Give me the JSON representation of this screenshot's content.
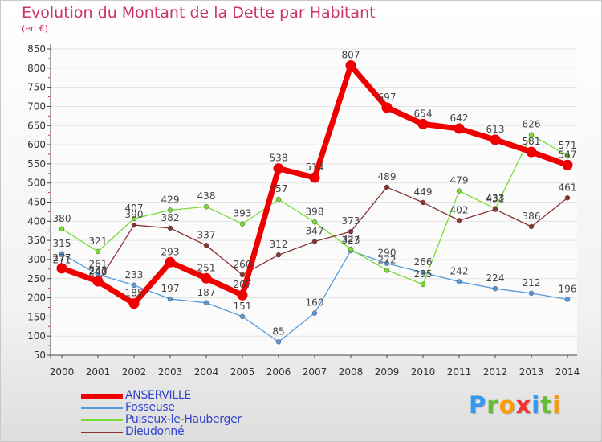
{
  "title": "Evolution du Montant de la Dette par Habitant",
  "subtitle": "(en €)",
  "chart_data": {
    "type": "line",
    "title": "Evolution du Montant de la Dette par Habitant",
    "subtitle": "(en €)",
    "ylim": [
      50,
      850
    ],
    "yticks": [
      50,
      100,
      150,
      200,
      250,
      300,
      350,
      400,
      450,
      500,
      550,
      600,
      650,
      700,
      750,
      800,
      850
    ],
    "x": [
      "2000",
      "2001",
      "2002",
      "2003",
      "2004",
      "2005",
      "2006",
      "2007",
      "2008",
      "2009",
      "2010",
      "2011",
      "2012",
      "2013",
      "2014"
    ],
    "grid": "horizontal",
    "legend_position": "bottom-left",
    "series": [
      {
        "name": "ANSERVILLE",
        "color": "#ee0000",
        "values": [
          277,
          243,
          185,
          293,
          251,
          207,
          538,
          514,
          807,
          697,
          654,
          642,
          613,
          581,
          547
        ]
      },
      {
        "name": "Fosseuse",
        "color": "#5599dd",
        "values": [
          315,
          261,
          233,
          197,
          187,
          151,
          85,
          160,
          323,
          290,
          266,
          242,
          224,
          212,
          196
        ]
      },
      {
        "name": "Puiseux-le-Hauberger",
        "color": "#77dd33",
        "values": [
          380,
          321,
          407,
          429,
          438,
          393,
          457,
          398,
          327,
          272,
          235,
          479,
          433,
          626,
          571
        ]
      },
      {
        "name": "Dieudonné",
        "color": "#883333",
        "values": [
          271,
          240,
          390,
          382,
          337,
          260,
          312,
          347,
          373,
          489,
          449,
          402,
          431,
          386,
          461
        ]
      }
    ]
  },
  "logo": {
    "text": "Proxiti",
    "letters": [
      "P",
      "r",
      "o",
      "x",
      "i",
      "t",
      "i"
    ],
    "colors": [
      "#3399ee",
      "#66bb33",
      "#ff9900",
      "#ee3333",
      "#3399ee",
      "#66bb33",
      "#ff9900"
    ]
  }
}
